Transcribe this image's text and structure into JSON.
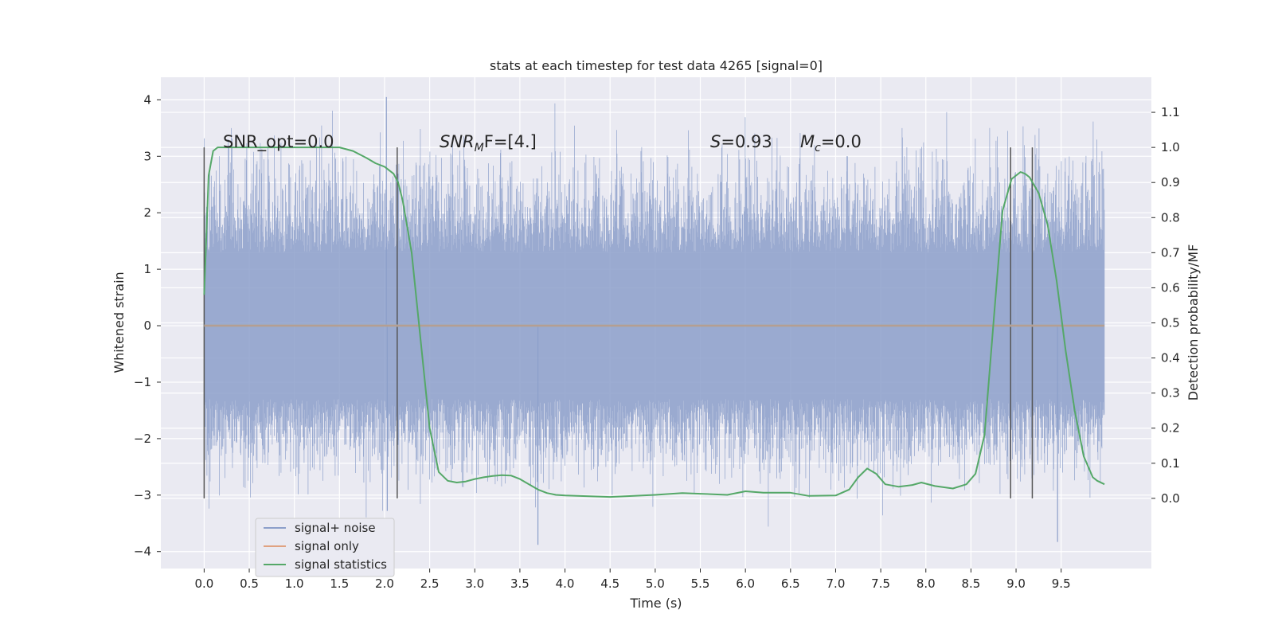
{
  "chart_data": {
    "type": "line",
    "title": "stats at each timestep for test data 4265 [signal=0]",
    "xlabel": "Time (s)",
    "ylabel": "Whitened strain",
    "y2label": "Detection probability/MF",
    "xlim": [
      -0.48,
      10.5
    ],
    "ylim": [
      -4.3,
      4.4
    ],
    "y2lim": [
      -0.2,
      1.2
    ],
    "grid": true,
    "xticks": [
      "0.0",
      "0.5",
      "1.0",
      "1.5",
      "2.0",
      "2.5",
      "3.0",
      "3.5",
      "4.0",
      "4.5",
      "5.0",
      "5.5",
      "6.0",
      "6.5",
      "7.0",
      "7.5",
      "8.0",
      "8.5",
      "9.0",
      "9.5"
    ],
    "yticks": [
      "4",
      "3",
      "2",
      "1",
      "0",
      "−1",
      "−2",
      "−3",
      "−4"
    ],
    "y2ticks": [
      "1.1",
      "1.0",
      "0.9",
      "0.8",
      "0.7",
      "0.6",
      "0.5",
      "0.4",
      "0.3",
      "0.2",
      "0.1",
      "0.0"
    ],
    "annotations": {
      "snr_opt": "SNR_opt=0.0",
      "snr_mf_sym": "SNR",
      "snr_mf_sub": "M",
      "snr_mf_rest": "F=[4.]",
      "s_sym": "S",
      "s_rest": "=0.93",
      "mc_sym": "M",
      "mc_sub": "c",
      "mc_rest": "=0.0"
    },
    "legend": {
      "placement": "lower-left",
      "entries": [
        "signal+ noise",
        "signal only",
        "signal statistics"
      ]
    },
    "colors": {
      "noise": "#8c9fca",
      "signal_only": "#dd8452",
      "statistics": "#55a868",
      "marker": "#555555",
      "background": "#eaeaf2",
      "grid": "#ffffff"
    },
    "noise_series": {
      "name": "signal+ noise",
      "x_range": [
        0.0,
        9.98
      ],
      "core_range": [
        -1.3,
        1.3
      ],
      "typical_extent": [
        -2.5,
        2.8
      ],
      "max": 4.05,
      "min": -3.88
    },
    "signal_only_series": {
      "name": "signal only",
      "x": [
        0.0,
        9.98
      ],
      "y": [
        0.0,
        0.0
      ]
    },
    "stat_series": {
      "name": "signal statistics",
      "x": [
        0.0,
        0.05,
        0.1,
        0.15,
        0.2,
        0.5,
        1.0,
        1.3,
        1.5,
        1.65,
        1.8,
        1.9,
        2.0,
        2.1,
        2.15,
        2.2,
        2.3,
        2.4,
        2.5,
        2.6,
        2.7,
        2.8,
        2.9,
        3.0,
        3.1,
        3.2,
        3.3,
        3.4,
        3.5,
        3.6,
        3.7,
        3.8,
        3.9,
        4.0,
        4.5,
        5.0,
        5.3,
        5.5,
        5.8,
        6.0,
        6.2,
        6.5,
        6.7,
        7.0,
        7.15,
        7.25,
        7.35,
        7.45,
        7.55,
        7.7,
        7.85,
        7.95,
        8.1,
        8.3,
        8.45,
        8.55,
        8.65,
        8.75,
        8.85,
        8.95,
        9.05,
        9.1,
        9.15,
        9.25,
        9.35,
        9.45,
        9.55,
        9.65,
        9.75,
        9.85,
        9.9,
        9.98
      ],
      "y": [
        0.58,
        0.92,
        0.99,
        1.0,
        1.0,
        1.0,
        1.0,
        1.0,
        1.0,
        0.99,
        0.97,
        0.955,
        0.945,
        0.925,
        0.9,
        0.85,
        0.7,
        0.45,
        0.2,
        0.075,
        0.05,
        0.045,
        0.048,
        0.055,
        0.06,
        0.064,
        0.066,
        0.065,
        0.055,
        0.04,
        0.025,
        0.015,
        0.01,
        0.008,
        0.004,
        0.01,
        0.015,
        0.013,
        0.01,
        0.02,
        0.016,
        0.016,
        0.007,
        0.008,
        0.025,
        0.06,
        0.085,
        0.07,
        0.04,
        0.033,
        0.038,
        0.045,
        0.035,
        0.028,
        0.04,
        0.07,
        0.18,
        0.5,
        0.82,
        0.91,
        0.93,
        0.925,
        0.915,
        0.87,
        0.78,
        0.62,
        0.42,
        0.25,
        0.12,
        0.06,
        0.05,
        0.04
      ]
    },
    "marker_lines_x": [
      0.0,
      2.14,
      8.94,
      9.18
    ]
  }
}
